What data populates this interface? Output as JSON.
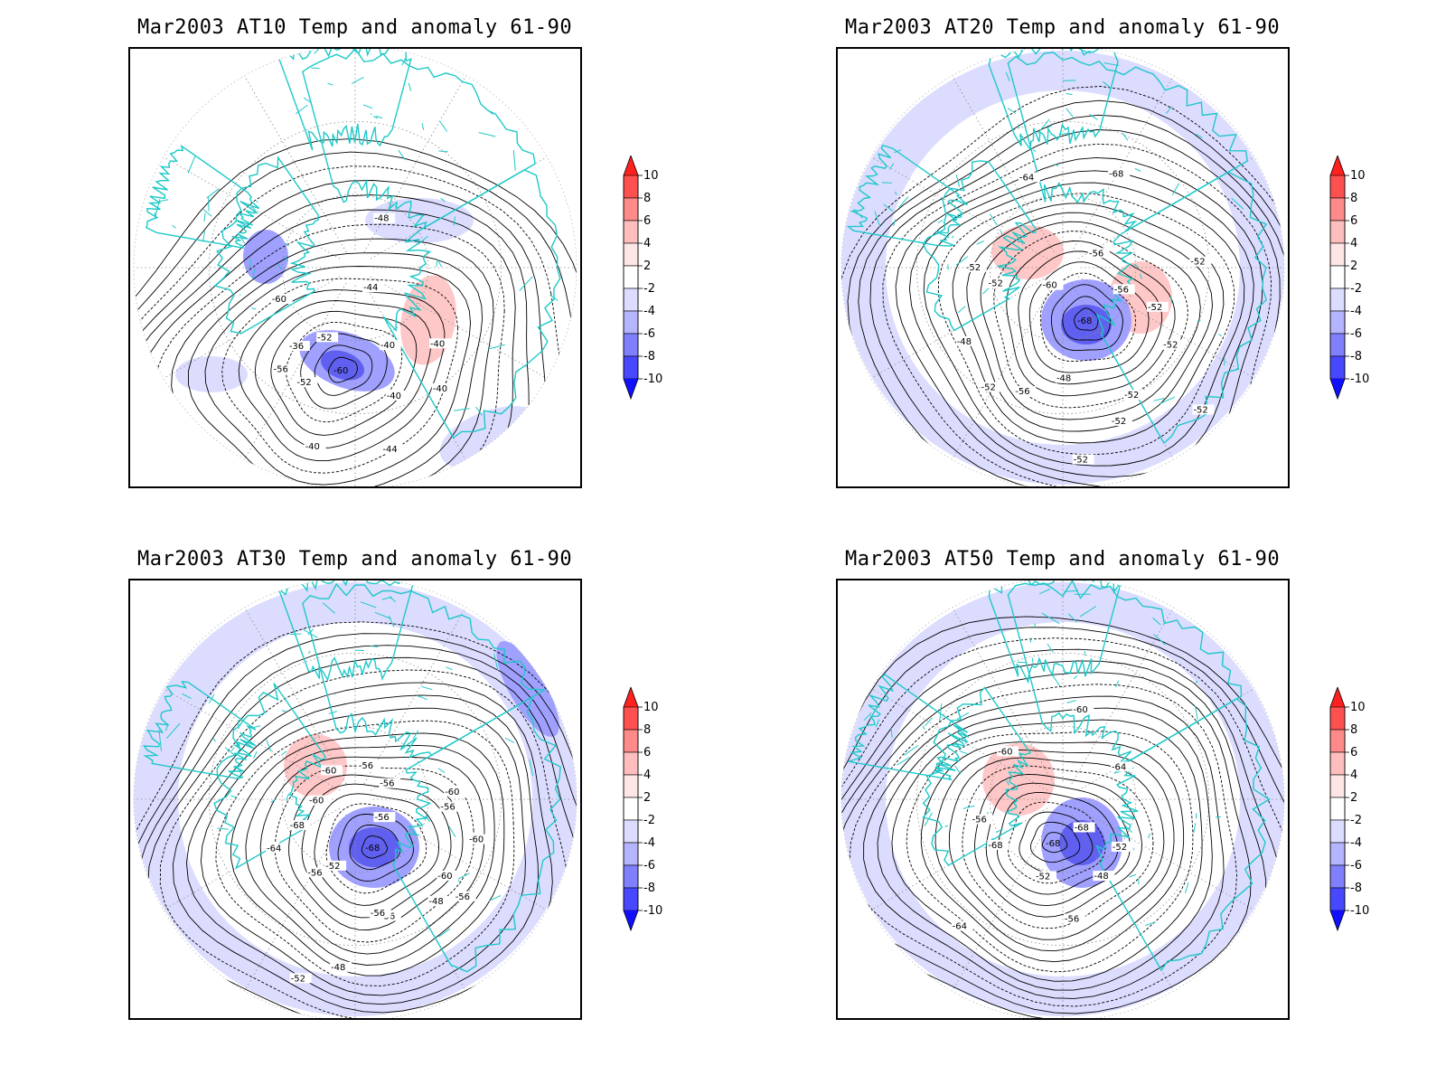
{
  "panels": [
    {
      "id": "at10",
      "title": "Mar2003 AT10 Temp and anomaly 61-90",
      "contour_labels": [
        "-40",
        "-40",
        "-44",
        "-44",
        "-40",
        "-40",
        "-52",
        "-56",
        "-36",
        "-60",
        "-52",
        "-48",
        "-44",
        "-40",
        "-40"
      ],
      "anomaly_min": -10,
      "vortex_center_label": "-60"
    },
    {
      "id": "at20",
      "title": "Mar2003 AT20 Temp and anomaly 61-90",
      "contour_labels": [
        "-52",
        "-52",
        "-52",
        "-52",
        "-52",
        "-48",
        "-56",
        "-52",
        "-48",
        "-52",
        "-52",
        "-60",
        "-64",
        "-56",
        "-68",
        "-56",
        "-52",
        "-52"
      ],
      "anomaly_min": -10,
      "vortex_center_label": "-68"
    },
    {
      "id": "at30",
      "title": "Mar2003 AT30 Temp and anomaly 61-90",
      "contour_labels": [
        "-60",
        "-56",
        "-48",
        "-56",
        "-56",
        "-48",
        "-52",
        "-52",
        "-56",
        "-64",
        "-68",
        "-60",
        "-60",
        "-56",
        "-56",
        "-56",
        "-60",
        "-56",
        "-60"
      ],
      "anomaly_min": -10,
      "vortex_center_label": "-68"
    },
    {
      "id": "at50",
      "title": "Mar2003 AT50 Temp and anomaly 61-90",
      "contour_labels": [
        "-52",
        "-48",
        "-56",
        "-52",
        "-64",
        "-68",
        "-56",
        "-60",
        "-60",
        "-64",
        "-68"
      ],
      "anomaly_min": -10,
      "vortex_center_label": "-68"
    }
  ],
  "colorbar": {
    "labels": [
      "10",
      "8",
      "6",
      "4",
      "2",
      "-2",
      "-4",
      "-6",
      "-8",
      "-10"
    ],
    "colors": [
      "#ff2020",
      "#ff5050",
      "#ff8a8a",
      "#ffbebe",
      "#ffe6e6",
      "#ffffff",
      "#dcdcff",
      "#b4b4ff",
      "#8080ff",
      "#4848ff",
      "#1010ff"
    ]
  },
  "colors": {
    "coast": "#1ec8c8",
    "contour": "#000000",
    "warm_anomaly": "#ffc8c8",
    "cold_anomaly_light": "#dcdcff",
    "cold_anomaly_mid": "#a0a0ff",
    "cold_anomaly_deep": "#6060f0"
  }
}
